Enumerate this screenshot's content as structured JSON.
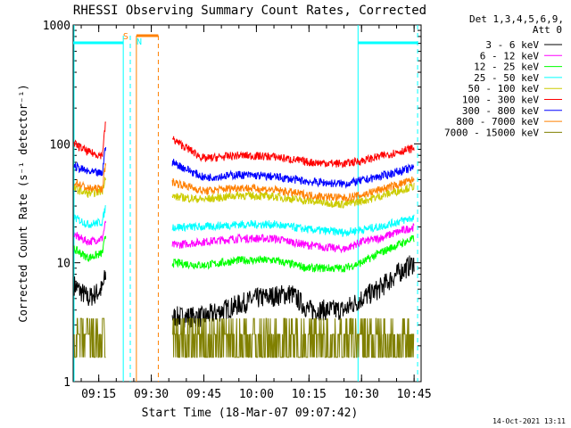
{
  "chart_data": {
    "type": "line",
    "title": "RHESSI Observing Summary Count Rates, Corrected",
    "xlabel": "Start Time (18-Mar-07 09:07:42)",
    "ylabel": "Corrected Count Rate (s⁻¹ detector⁻¹)",
    "yscale": "log",
    "ylim": [
      1,
      1000
    ],
    "xlim": [
      "09:07:42",
      "10:47:00"
    ],
    "xticks": [
      "09:15",
      "09:30",
      "09:45",
      "10:00",
      "10:15",
      "10:30",
      "10:45"
    ],
    "yticks": [
      "1",
      "10",
      "100",
      "1000"
    ],
    "legend_header": [
      "Det 1,3,4,5,6,9,",
      "Att 0"
    ],
    "legend_position": "right",
    "series": [
      {
        "name": "3 - 6 keV",
        "color": "#000000",
        "x": [
          "09:08",
          "09:12",
          "09:16",
          "09:17",
          "09:19",
          "09:33",
          "09:36",
          "09:45",
          "10:00",
          "10:10",
          "10:15",
          "10:25",
          "10:30",
          "10:35",
          "10:40",
          "10:45"
        ],
        "values": [
          6.5,
          5,
          6,
          8,
          null,
          null,
          3.5,
          3.5,
          5,
          5.5,
          4,
          4,
          5,
          6,
          8,
          10
        ]
      },
      {
        "name": "6 - 12 keV",
        "color": "#ff00ff",
        "x": [
          "09:08",
          "09:12",
          "09:16",
          "09:17",
          "09:19",
          "09:33",
          "09:36",
          "09:45",
          "09:55",
          "10:05",
          "10:15",
          "10:25",
          "10:30",
          "10:35",
          "10:40",
          "10:45"
        ],
        "values": [
          17,
          15,
          16,
          22,
          null,
          null,
          14,
          15,
          16,
          16,
          14,
          13,
          15,
          16,
          18,
          20
        ]
      },
      {
        "name": "12 - 25 keV",
        "color": "#00ff00",
        "x": [
          "09:08",
          "09:12",
          "09:16",
          "09:17",
          "09:19",
          "09:33",
          "09:36",
          "09:45",
          "09:55",
          "10:05",
          "10:15",
          "10:25",
          "10:30",
          "10:35",
          "10:40",
          "10:45"
        ],
        "values": [
          13,
          11,
          12,
          17,
          null,
          null,
          10,
          9.5,
          10.5,
          10.5,
          9,
          9,
          10,
          12,
          14,
          16
        ]
      },
      {
        "name": "25 - 50 keV",
        "color": "#00ffff",
        "x": [
          "09:08",
          "09:12",
          "09:16",
          "09:17",
          "09:19",
          "09:33",
          "09:36",
          "09:45",
          "09:55",
          "10:05",
          "10:15",
          "10:25",
          "10:30",
          "10:35",
          "10:40",
          "10:45"
        ],
        "values": [
          24,
          21,
          22,
          30,
          null,
          null,
          20,
          20,
          21,
          21,
          19,
          18,
          19,
          20,
          22,
          24
        ]
      },
      {
        "name": "50 - 100 keV",
        "color": "#cccc00",
        "x": [
          "09:08",
          "09:12",
          "09:16",
          "09:17",
          "09:19",
          "09:33",
          "09:36",
          "09:45",
          "09:55",
          "10:05",
          "10:15",
          "10:25",
          "10:30",
          "10:35",
          "10:40",
          "10:45"
        ],
        "values": [
          42,
          38,
          40,
          55,
          null,
          null,
          36,
          34,
          37,
          36,
          33,
          31,
          33,
          36,
          40,
          44
        ]
      },
      {
        "name": "100 - 300 keV",
        "color": "#ff0000",
        "x": [
          "09:08",
          "09:12",
          "09:16",
          "09:17",
          "09:19",
          "09:33",
          "09:36",
          "09:45",
          "09:55",
          "10:05",
          "10:15",
          "10:25",
          "10:30",
          "10:35",
          "10:40",
          "10:45"
        ],
        "values": [
          100,
          85,
          80,
          155,
          null,
          null,
          110,
          75,
          80,
          78,
          70,
          68,
          72,
          78,
          85,
          92
        ]
      },
      {
        "name": "300 - 800 keV",
        "color": "#0000ff",
        "x": [
          "09:08",
          "09:12",
          "09:16",
          "09:17",
          "09:19",
          "09:33",
          "09:36",
          "09:45",
          "09:55",
          "10:05",
          "10:15",
          "10:25",
          "10:30",
          "10:35",
          "10:40",
          "10:45"
        ],
        "values": [
          65,
          58,
          56,
          100,
          null,
          null,
          70,
          52,
          55,
          53,
          48,
          46,
          49,
          53,
          58,
          63
        ]
      },
      {
        "name": "800 - 7000 keV",
        "color": "#ff8000",
        "x": [
          "09:08",
          "09:12",
          "09:16",
          "09:17",
          "09:19",
          "09:33",
          "09:36",
          "09:45",
          "09:55",
          "10:05",
          "10:15",
          "10:25",
          "10:30",
          "10:35",
          "10:40",
          "10:45"
        ],
        "values": [
          48,
          42,
          42,
          70,
          null,
          null,
          48,
          40,
          43,
          41,
          37,
          35,
          37,
          41,
          45,
          50
        ]
      },
      {
        "name": "7000 - 15000 keV",
        "color": "#808000",
        "x": [
          "09:08",
          "09:12",
          "09:16",
          "09:17",
          "09:19",
          "09:33",
          "09:36",
          "09:45",
          "09:55",
          "10:05",
          "10:15",
          "10:25",
          "10:30",
          "10:35",
          "10:40",
          "10:45"
        ],
        "values": [
          2.5,
          1.6,
          2.5,
          3,
          null,
          null,
          1.6,
          2,
          2.5,
          2.5,
          2.5,
          2,
          2.5,
          2.5,
          2.5,
          3
        ]
      }
    ],
    "annotations": [
      {
        "label": "S",
        "color": "#ff8000",
        "start": "09:26",
        "end": "09:32"
      },
      {
        "label": "N",
        "color": "#00ffff",
        "start": "09:22",
        "end": "09:24"
      },
      {
        "label": "",
        "color": "#00ffff",
        "start": "09:07:42",
        "end": "09:22"
      },
      {
        "label": "",
        "color": "#00ffff",
        "start": "10:29",
        "end": "10:46"
      }
    ],
    "footer_date": "14-Oct-2021 13:11"
  }
}
